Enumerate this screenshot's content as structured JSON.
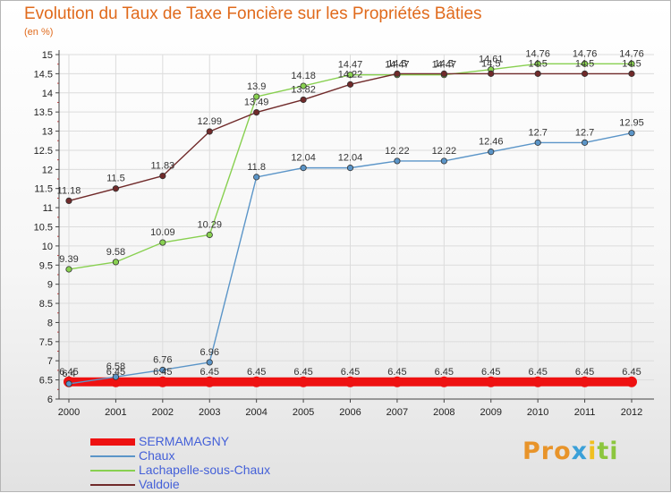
{
  "chart_data": {
    "type": "line",
    "title": "Evolution du Taux de Taxe Foncière sur les Propriétés Bâties",
    "ylabel": "(en %)",
    "xlabel": "",
    "categories": [
      "2000",
      "2001",
      "2002",
      "2003",
      "2004",
      "2005",
      "2006",
      "2007",
      "2008",
      "2009",
      "2010",
      "2011",
      "2012"
    ],
    "ylim": [
      6,
      15
    ],
    "yticks": [
      "6",
      "6.5",
      "7",
      "7.5",
      "8",
      "8.5",
      "9",
      "9.5",
      "10",
      "10.5",
      "11",
      "11.5",
      "12",
      "12.5",
      "13",
      "13.5",
      "14",
      "14.5",
      "15"
    ],
    "series": [
      {
        "name": "SERMAMAGNY",
        "color": "#ee1111",
        "values": [
          6.45,
          6.45,
          6.45,
          6.45,
          6.45,
          6.45,
          6.45,
          6.45,
          6.45,
          6.45,
          6.45,
          6.45,
          6.45
        ],
        "labels": [
          "6.45",
          "6.45",
          "6.45",
          "6.45",
          "6.45",
          "6.45",
          "6.45",
          "6.45",
          "6.45",
          "6.45",
          "6.45",
          "6.45",
          "6.45"
        ]
      },
      {
        "name": "Chaux",
        "color": "#5b95c8",
        "values": [
          6.4,
          6.58,
          6.76,
          6.96,
          11.8,
          12.04,
          12.04,
          12.22,
          12.22,
          12.46,
          12.7,
          12.7,
          12.95
        ],
        "labels": [
          "6.4",
          "6.58",
          "6.76",
          "6.96",
          "11.8",
          "12.04",
          "12.04",
          "12.22",
          "12.22",
          "12.46",
          "12.7",
          "12.7",
          "12.95"
        ]
      },
      {
        "name": "Lachapelle-sous-Chaux",
        "color": "#88d050",
        "values": [
          9.39,
          9.58,
          10.09,
          10.29,
          13.9,
          14.18,
          14.47,
          14.47,
          14.47,
          14.61,
          14.76,
          14.76,
          14.76
        ],
        "labels": [
          "9.39",
          "9.58",
          "10.09",
          "10.29",
          "13.9",
          "14.18",
          "14.47",
          "14.47",
          "14.47",
          "14.61",
          "14.76",
          "14.76",
          "14.76"
        ]
      },
      {
        "name": "Valdoie",
        "color": "#702a2a",
        "values": [
          11.18,
          11.5,
          11.83,
          12.99,
          13.49,
          13.82,
          14.22,
          14.5,
          14.5,
          14.5,
          14.5,
          14.5,
          14.5
        ],
        "labels": [
          "11.18",
          "11.5",
          "11.83",
          "12.99",
          "13.49",
          "13.82",
          "14.22",
          "14.5",
          "14.5",
          "14.5",
          "14.5",
          "14.5",
          "14.5"
        ]
      }
    ],
    "legend": "bottom-left"
  },
  "brand": {
    "part1": "Pro",
    "part2": "x",
    "part3": "i",
    "part4": "ti"
  }
}
